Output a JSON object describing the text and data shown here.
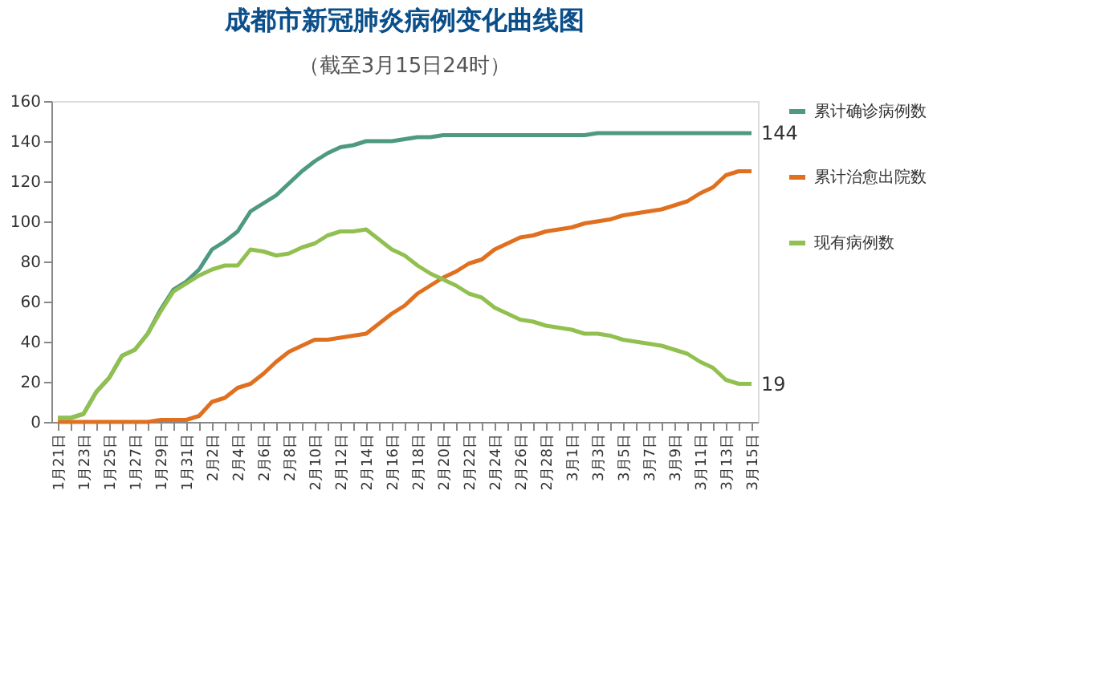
{
  "chart_data": {
    "type": "line",
    "title": "成都市新冠肺炎病例变化曲线图",
    "subtitle": "（截至3月15日24时）",
    "categories": [
      "1月21日",
      null,
      "1月23日",
      null,
      "1月25日",
      null,
      "1月27日",
      null,
      "1月29日",
      null,
      "1月31日",
      null,
      "2月2日",
      null,
      "2月4日",
      null,
      "2月6日",
      null,
      "2月8日",
      null,
      "2月10日",
      null,
      "2月12日",
      null,
      "2月14日",
      null,
      "2月16日",
      null,
      "2月18日",
      null,
      "2月20日",
      null,
      "2月22日",
      null,
      "2月24日",
      null,
      "2月26日",
      null,
      "2月28日",
      null,
      "3月1日",
      null,
      "3月3日",
      null,
      "3月5日",
      null,
      "3月7日",
      null,
      "3月9日",
      null,
      "3月11日",
      null,
      "3月13日",
      null,
      "3月15日"
    ],
    "series": [
      {
        "name": "累计确诊病例数",
        "color": "#4e9a80",
        "values": [
          2,
          2,
          4,
          15,
          22,
          33,
          36,
          44,
          56,
          66,
          70,
          76,
          86,
          90,
          95,
          105,
          109,
          113,
          119,
          125,
          130,
          134,
          137,
          138,
          140,
          140,
          140,
          141,
          142,
          142,
          143,
          143,
          143,
          143,
          143,
          143,
          143,
          143,
          143,
          143,
          143,
          143,
          144,
          144,
          144,
          144,
          144,
          144,
          144,
          144,
          144,
          144,
          144,
          144,
          144
        ]
      },
      {
        "name": "累计治愈出院数",
        "color": "#e07020",
        "values": [
          0,
          0,
          0,
          0,
          0,
          0,
          0,
          0,
          1,
          1,
          1,
          3,
          10,
          12,
          17,
          19,
          24,
          30,
          35,
          38,
          41,
          41,
          42,
          43,
          44,
          49,
          54,
          58,
          64,
          68,
          72,
          75,
          79,
          81,
          86,
          89,
          92,
          93,
          95,
          96,
          97,
          99,
          100,
          101,
          103,
          104,
          105,
          106,
          108,
          110,
          114,
          117,
          123,
          125,
          125
        ]
      },
      {
        "name": "现有病例数",
        "color": "#92c050",
        "values": [
          2,
          2,
          4,
          15,
          22,
          33,
          36,
          44,
          55,
          65,
          69,
          73,
          76,
          78,
          78,
          86,
          85,
          83,
          84,
          87,
          89,
          93,
          95,
          95,
          96,
          91,
          86,
          83,
          78,
          74,
          71,
          68,
          64,
          62,
          57,
          54,
          51,
          50,
          48,
          47,
          46,
          44,
          44,
          43,
          41,
          40,
          39,
          38,
          36,
          34,
          30,
          27,
          21,
          19,
          19
        ]
      }
    ],
    "ylim": [
      0,
      160
    ],
    "yticks": [
      0,
      20,
      40,
      60,
      80,
      100,
      120,
      140,
      160
    ],
    "grid": false,
    "legend": "right",
    "annotations": [
      {
        "text": "144",
        "x": "3月15日",
        "y": 144
      },
      {
        "text": "19",
        "x": "3月15日",
        "y": 19
      }
    ]
  }
}
